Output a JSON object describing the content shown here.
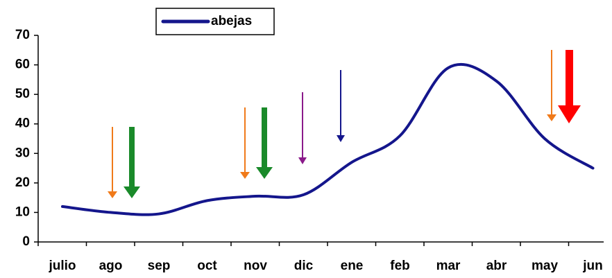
{
  "chart_data": {
    "type": "line",
    "categories": [
      "julio",
      "ago",
      "sep",
      "oct",
      "nov",
      "dic",
      "ene",
      "feb",
      "mar",
      "abr",
      "may",
      "jun"
    ],
    "series": [
      {
        "name": "abejas",
        "color": "#14168c",
        "values": [
          12,
          10,
          9.5,
          14,
          15.5,
          16,
          27,
          36,
          59,
          54.5,
          35,
          25
        ]
      }
    ],
    "ylim": [
      0,
      70
    ],
    "yticks": [
      0,
      10,
      20,
      30,
      40,
      50,
      60,
      70
    ]
  }
}
